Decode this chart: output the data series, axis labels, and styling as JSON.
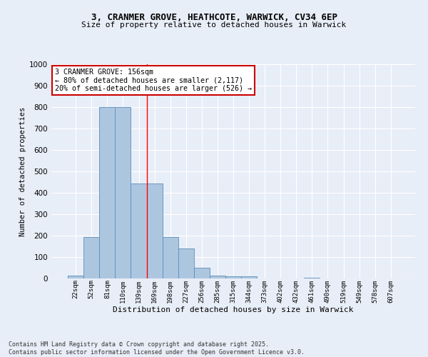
{
  "title_line1": "3, CRANMER GROVE, HEATHCOTE, WARWICK, CV34 6EP",
  "title_line2": "Size of property relative to detached houses in Warwick",
  "xlabel": "Distribution of detached houses by size in Warwick",
  "ylabel": "Number of detached properties",
  "categories": [
    "22sqm",
    "52sqm",
    "81sqm",
    "110sqm",
    "139sqm",
    "169sqm",
    "198sqm",
    "227sqm",
    "256sqm",
    "285sqm",
    "315sqm",
    "344sqm",
    "373sqm",
    "402sqm",
    "432sqm",
    "461sqm",
    "490sqm",
    "519sqm",
    "549sqm",
    "578sqm",
    "607sqm"
  ],
  "values": [
    15,
    195,
    800,
    800,
    445,
    445,
    195,
    140,
    50,
    15,
    10,
    10,
    0,
    0,
    0,
    5,
    0,
    0,
    0,
    0,
    0
  ],
  "bar_color": "#adc6e0",
  "bar_edge_color": "#5b8db8",
  "red_line_x": 4.5,
  "annotation_text": "3 CRANMER GROVE: 156sqm\n← 80% of detached houses are smaller (2,117)\n20% of semi-detached houses are larger (526) →",
  "annotation_box_color": "#ffffff",
  "annotation_box_edge": "#cc0000",
  "annotation_text_color": "#000000",
  "footer_line1": "Contains HM Land Registry data © Crown copyright and database right 2025.",
  "footer_line2": "Contains public sector information licensed under the Open Government Licence v3.0.",
  "bg_color": "#e8eef7",
  "plot_bg_color": "#e8eef7",
  "grid_color": "#ffffff",
  "ylim": [
    0,
    1000
  ],
  "yticks": [
    0,
    100,
    200,
    300,
    400,
    500,
    600,
    700,
    800,
    900,
    1000
  ]
}
